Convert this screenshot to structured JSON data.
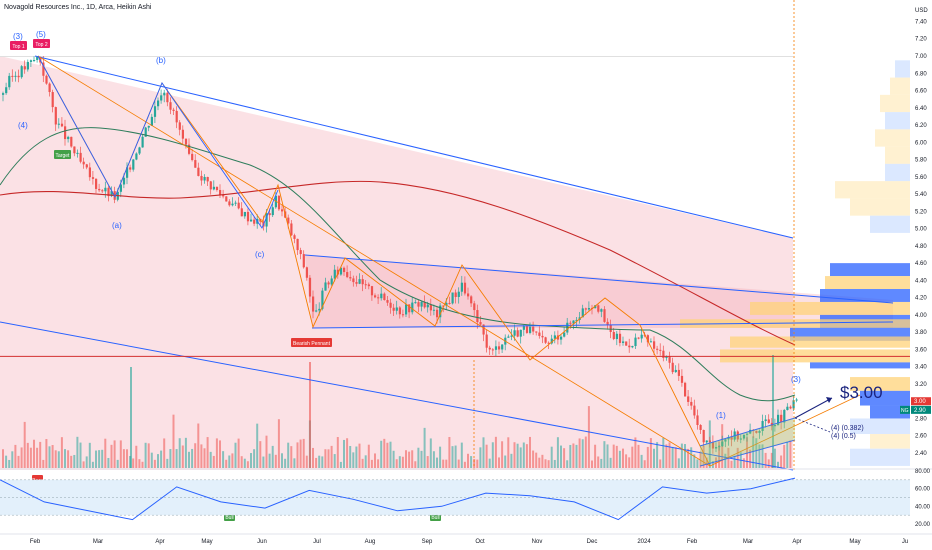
{
  "header": {
    "title": "Novagold Resources Inc., 1D, Arca, Heikin Ashi"
  },
  "price_axis": {
    "currency": "USD",
    "ticks": [
      "7.40",
      "7.20",
      "7.00",
      "6.80",
      "6.60",
      "6.40",
      "6.20",
      "6.00",
      "5.80",
      "5.60",
      "5.40",
      "5.20",
      "5.00",
      "4.80",
      "4.60",
      "4.40",
      "4.20",
      "4.00",
      "3.80",
      "3.60",
      "3.40",
      "3.20",
      "3.00",
      "2.80",
      "2.60",
      "2.40"
    ],
    "current_price_label": "3.00",
    "ng_label": "NG",
    "ng_price": "2.90"
  },
  "rsi_axis": {
    "ticks": [
      "80.00",
      "60.00",
      "40.00",
      "20.00"
    ]
  },
  "time_axis": {
    "ticks": [
      "Feb",
      "Mar",
      "Apr",
      "May",
      "Jun",
      "Jul",
      "Aug",
      "Sep",
      "Oct",
      "Nov",
      "Dec",
      "2024",
      "Feb",
      "Mar",
      "Apr",
      "May",
      "Ju"
    ]
  },
  "annotations": {
    "top1": "Top 1",
    "top2": "Top 2",
    "target": "Target",
    "bearish_pennant": "Bearish Pennant",
    "price_target": "$3.00",
    "bear": "Bear",
    "bull1": "Bull",
    "bull2": "Bull",
    "bull3": "Bull",
    "wave_3_top": "(3)",
    "wave_5_top": "(5)",
    "wave_4_left": "(4)",
    "wave_b": "(b)",
    "wave_a": "(a)",
    "wave_c": "(c)",
    "wave_3_right": "(3)",
    "wave_1_right": "(1)",
    "wave_4_right_a": "(4) (0.382)",
    "wave_4_right_b": "(4) (0.5)"
  },
  "colors": {
    "up": "#26a69a",
    "down": "#ef5350",
    "channel": "#2962ff",
    "fill": "#f8c8cf",
    "ma_red": "#c62828",
    "ma_green": "#2e7d5b",
    "zigzag": "#f57c00",
    "hline": "#d32f2f",
    "rsi": "#2962ff",
    "rsi_band": "#e3f0fb"
  },
  "chart_data": {
    "type": "candlestick",
    "title": "Novagold Resources Inc., 1D, Arca, Heikin Ashi",
    "ylabel": "USD",
    "ylim": [
      2.2,
      7.5
    ],
    "x": [
      "Feb",
      "Mar",
      "Apr",
      "May",
      "Jun",
      "Jul",
      "Aug",
      "Sep",
      "Oct",
      "Nov",
      "Dec",
      "2024",
      "Feb",
      "Mar",
      "Apr"
    ],
    "close_approx": [
      6.8,
      5.4,
      6.5,
      5.3,
      5.1,
      4.5,
      4.3,
      4.2,
      3.7,
      4.1,
      3.9,
      3.9,
      2.5,
      2.8,
      3.0
    ],
    "horizontal_line": 3.52,
    "price_target": 3.0,
    "rsi": {
      "ylim": [
        15,
        85
      ],
      "values_approx": [
        70,
        45,
        35,
        25,
        62,
        45,
        38,
        58,
        48,
        35,
        40,
        55,
        52,
        45,
        25,
        62,
        55,
        60,
        72
      ]
    }
  }
}
